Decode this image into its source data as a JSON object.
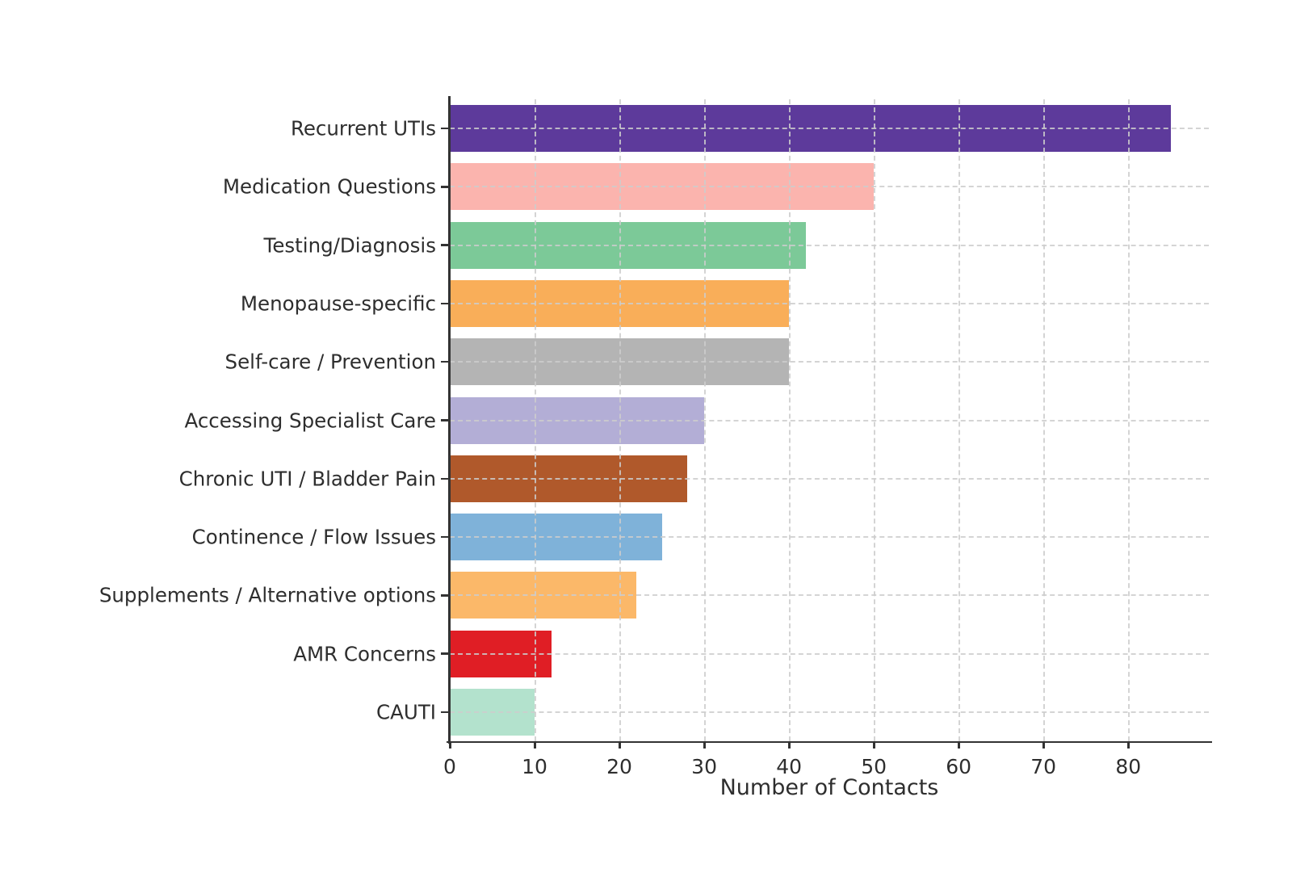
{
  "chart_data": {
    "type": "bar",
    "orientation": "horizontal",
    "title": "",
    "xlabel": "Number of Contacts",
    "ylabel": "",
    "categories": [
      "Recurrent UTIs",
      "Medication Questions",
      "Testing/Diagnosis",
      "Menopause-specific",
      "Self-care / Prevention",
      "Accessing Specialist Care",
      "Chronic UTI / Bladder Pain",
      "Continence / Flow Issues",
      "Supplements / Alternative options",
      "AMR Concerns",
      "CAUTI"
    ],
    "values": [
      85,
      50,
      42,
      40,
      40,
      30,
      28,
      25,
      22,
      12,
      10
    ],
    "bar_colors": [
      "#5D3A9B",
      "#FBB4AE",
      "#7CC998",
      "#F9AE59",
      "#B4B4B4",
      "#B3AED6",
      "#B0592B",
      "#7FB2D9",
      "#FBB869",
      "#E01E25",
      "#B3E2CD"
    ],
    "x_ticks": [
      0,
      10,
      20,
      30,
      40,
      50,
      60,
      70,
      80
    ],
    "xlim": [
      0,
      89.5
    ],
    "grid": "dashed both axes",
    "legend": "none",
    "spine_color": "#333333",
    "grid_color": "#cdcdcd",
    "text_color": "#2e2e2e",
    "background_color": "#ffffff"
  }
}
